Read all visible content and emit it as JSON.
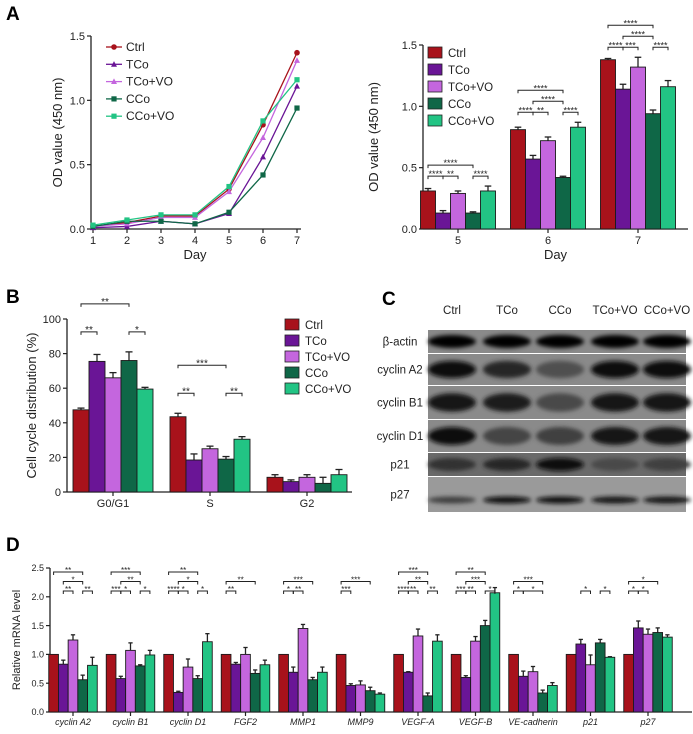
{
  "panel_letters": {
    "a": "A",
    "b": "B",
    "c": "C",
    "d": "D"
  },
  "colors": {
    "Ctrl": "#a8121b",
    "TCo": "#6a1596",
    "TCo+VO": "#c466de",
    "CCo": "#0f6747",
    "CCo+VO": "#22c484"
  },
  "chart_data": [
    {
      "id": "A-line",
      "type": "line",
      "xlabel": "Day",
      "ylabel": "OD value (450 nm)",
      "x": [
        1,
        2,
        3,
        4,
        5,
        6,
        7
      ],
      "xticks": [
        "1",
        "2",
        "3",
        "4",
        "5",
        "6",
        "7"
      ],
      "ylim": [
        0,
        1.5
      ],
      "yticks": [
        "0.0",
        "0.5",
        "1.0",
        "1.5"
      ],
      "legend": "top-left",
      "series": [
        {
          "name": "Ctrl",
          "marker": "circle",
          "values": [
            0.02,
            0.05,
            0.1,
            0.1,
            0.31,
            0.81,
            1.37
          ]
        },
        {
          "name": "TCo",
          "marker": "triangle",
          "values": [
            0.01,
            0.02,
            0.06,
            0.04,
            0.12,
            0.56,
            1.11
          ]
        },
        {
          "name": "TCo+VO",
          "marker": "triangle",
          "values": [
            0.02,
            0.04,
            0.09,
            0.09,
            0.29,
            0.71,
            1.31
          ]
        },
        {
          "name": "CCo",
          "marker": "square",
          "values": [
            0.02,
            0.06,
            0.06,
            0.04,
            0.13,
            0.42,
            0.94
          ]
        },
        {
          "name": "CCo+VO",
          "marker": "square",
          "values": [
            0.03,
            0.07,
            0.11,
            0.11,
            0.33,
            0.84,
            1.16
          ]
        }
      ]
    },
    {
      "id": "A-bar",
      "type": "bar",
      "xlabel": "Day",
      "ylabel": "OD value (450 nm)",
      "categories": [
        "5",
        "6",
        "7"
      ],
      "ylim": [
        0,
        1.5
      ],
      "yticks": [
        "0.0",
        "0.5",
        "1.0",
        "1.5"
      ],
      "legend": "top-left",
      "series": [
        {
          "name": "Ctrl",
          "values": [
            0.31,
            0.81,
            1.38
          ],
          "err": [
            0.02,
            0.02,
            0.01
          ]
        },
        {
          "name": "TCo",
          "values": [
            0.13,
            0.57,
            1.14
          ],
          "err": [
            0.02,
            0.03,
            0.04
          ]
        },
        {
          "name": "TCo+VO",
          "values": [
            0.29,
            0.72,
            1.32
          ],
          "err": [
            0.02,
            0.03,
            0.08
          ]
        },
        {
          "name": "CCo",
          "values": [
            0.13,
            0.42,
            0.94
          ],
          "err": [
            0.01,
            0.01,
            0.03
          ]
        },
        {
          "name": "CCo+VO",
          "values": [
            0.31,
            0.83,
            1.16
          ],
          "err": [
            0.04,
            0.04,
            0.05
          ]
        }
      ],
      "annotations": [
        {
          "group": 0,
          "from": 0,
          "to": 3,
          "text": "****"
        },
        {
          "group": 0,
          "from": 0,
          "to": 1,
          "text": "****"
        },
        {
          "group": 0,
          "from": 1,
          "to": 2,
          "text": "**"
        },
        {
          "group": 0,
          "from": 3,
          "to": 4,
          "text": "****"
        },
        {
          "group": 1,
          "from": 0,
          "to": 3,
          "text": "****"
        },
        {
          "group": 1,
          "from": 0,
          "to": 1,
          "text": "****"
        },
        {
          "group": 1,
          "from": 1,
          "to": 3,
          "text": "****"
        },
        {
          "group": 1,
          "from": 1,
          "to": 2,
          "text": "**"
        },
        {
          "group": 1,
          "from": 3,
          "to": 4,
          "text": "****"
        },
        {
          "group": 2,
          "from": 0,
          "to": 3,
          "text": "****"
        },
        {
          "group": 2,
          "from": 0,
          "to": 1,
          "text": "****"
        },
        {
          "group": 2,
          "from": 1,
          "to": 3,
          "text": "****"
        },
        {
          "group": 2,
          "from": 1,
          "to": 2,
          "text": "***"
        },
        {
          "group": 2,
          "from": 3,
          "to": 4,
          "text": "****"
        }
      ]
    },
    {
      "id": "B-bar",
      "type": "bar",
      "xlabel": "",
      "ylabel": "Cell cycle distribution (%)",
      "categories": [
        "G0/G1",
        "S",
        "G2"
      ],
      "ylim": [
        0,
        100
      ],
      "yticks": [
        "0",
        "20",
        "40",
        "60",
        "80",
        "100"
      ],
      "legend": "top-right",
      "series": [
        {
          "name": "Ctrl",
          "values": [
            47.5,
            43.5,
            8.5
          ],
          "err": [
            1,
            2,
            1.5
          ]
        },
        {
          "name": "TCo",
          "values": [
            75.5,
            18.5,
            6
          ],
          "err": [
            4,
            3.5,
            1
          ]
        },
        {
          "name": "TCo+VO",
          "values": [
            66,
            25,
            8.5
          ],
          "err": [
            3,
            1.5,
            1.5
          ]
        },
        {
          "name": "CCo",
          "values": [
            76,
            19,
            5
          ],
          "err": [
            5,
            1.5,
            3.5
          ]
        },
        {
          "name": "CCo+VO",
          "values": [
            59.5,
            30.5,
            10
          ],
          "err": [
            1,
            1.5,
            3
          ]
        }
      ],
      "annotations": [
        {
          "group": 0,
          "from": 0,
          "to": 3,
          "text": "**"
        },
        {
          "group": 0,
          "from": 0,
          "to": 1,
          "text": "**"
        },
        {
          "group": 0,
          "from": 3,
          "to": 4,
          "text": "*"
        },
        {
          "group": 1,
          "from": 0,
          "to": 3,
          "text": "***"
        },
        {
          "group": 1,
          "from": 0,
          "to": 1,
          "text": "**"
        },
        {
          "group": 1,
          "from": 3,
          "to": 4,
          "text": "**"
        }
      ]
    },
    {
      "id": "D-bar",
      "type": "bar",
      "xlabel": "",
      "ylabel": "Relative mRNA level",
      "categories": [
        "cyclin A2",
        "cyclin B1",
        "cyclin D1",
        "FGF2",
        "MMP1",
        "MMP9",
        "VEGF-A",
        "VEGF-B",
        "VE-cadherin",
        "p21",
        "p27"
      ],
      "ylim": [
        0,
        2.5
      ],
      "yticks": [
        "0.0",
        "0.5",
        "1.0",
        "1.5",
        "2.0",
        "2.5"
      ],
      "legend": "none",
      "series": [
        {
          "name": "Ctrl",
          "values": [
            1,
            1,
            1,
            1,
            1,
            1,
            1,
            1,
            1,
            1,
            1
          ],
          "err": [
            0,
            0,
            0,
            0,
            0,
            0,
            0,
            0,
            0,
            0,
            0
          ]
        },
        {
          "name": "TCo",
          "values": [
            0.83,
            0.58,
            0.34,
            0.83,
            0.69,
            0.46,
            0.69,
            0.6,
            0.62,
            1.18,
            1.46
          ],
          "err": [
            0.07,
            0.04,
            0.02,
            0.03,
            0.09,
            0.03,
            0.01,
            0.03,
            0.09,
            0.08,
            0.12
          ]
        },
        {
          "name": "TCo+VO",
          "values": [
            1.25,
            1.07,
            0.78,
            1.0,
            1.45,
            0.47,
            1.32,
            1.23,
            0.7,
            0.82,
            1.35
          ],
          "err": [
            0.09,
            0.13,
            0.14,
            0.12,
            0.07,
            0.07,
            0.12,
            0.08,
            0.09,
            0.17,
            0.09
          ]
        },
        {
          "name": "CCo",
          "values": [
            0.56,
            0.8,
            0.58,
            0.67,
            0.56,
            0.37,
            0.28,
            1.5,
            0.33,
            1.2,
            1.38
          ],
          "err": [
            0.08,
            0.02,
            0.05,
            0.06,
            0.04,
            0.06,
            0.05,
            0.09,
            0.05,
            0.06,
            0.08
          ]
        },
        {
          "name": "CCo+VO",
          "values": [
            0.81,
            0.99,
            1.22,
            0.82,
            0.69,
            0.31,
            1.23,
            2.07,
            0.46,
            0.95,
            1.3
          ],
          "err": [
            0.14,
            0.08,
            0.14,
            0.08,
            0.09,
            0.02,
            0.11,
            0.09,
            0.05,
            0.01,
            0.04
          ]
        }
      ],
      "annotations": [
        {
          "group": 0,
          "from": 0,
          "to": 3,
          "text": "**"
        },
        {
          "group": 0,
          "from": 3,
          "to": 4,
          "text": "**"
        },
        {
          "group": 0,
          "from": 1,
          "to": 3,
          "text": "*"
        },
        {
          "group": 0,
          "from": 1,
          "to": 2,
          "text": "**"
        },
        {
          "group": 1,
          "from": 0,
          "to": 3,
          "text": "***"
        },
        {
          "group": 1,
          "from": 0,
          "to": 1,
          "text": "***"
        },
        {
          "group": 1,
          "from": 1,
          "to": 3,
          "text": "**"
        },
        {
          "group": 1,
          "from": 1,
          "to": 2,
          "text": "*"
        },
        {
          "group": 1,
          "from": 3,
          "to": 4,
          "text": "*"
        },
        {
          "group": 2,
          "from": 0,
          "to": 3,
          "text": "**"
        },
        {
          "group": 2,
          "from": 0,
          "to": 1,
          "text": "****"
        },
        {
          "group": 2,
          "from": 1,
          "to": 3,
          "text": "*"
        },
        {
          "group": 2,
          "from": 1,
          "to": 2,
          "text": "*"
        },
        {
          "group": 2,
          "from": 3,
          "to": 4,
          "text": "*"
        },
        {
          "group": 3,
          "from": 0,
          "to": 3,
          "text": "**"
        },
        {
          "group": 3,
          "from": 0,
          "to": 1,
          "text": "**"
        },
        {
          "group": 4,
          "from": 0,
          "to": 3,
          "text": "***"
        },
        {
          "group": 4,
          "from": 0,
          "to": 1,
          "text": "*"
        },
        {
          "group": 4,
          "from": 1,
          "to": 2,
          "text": "**"
        },
        {
          "group": 5,
          "from": 0,
          "to": 3,
          "text": "***"
        },
        {
          "group": 5,
          "from": 0,
          "to": 1,
          "text": "***"
        },
        {
          "group": 6,
          "from": 0,
          "to": 3,
          "text": "***"
        },
        {
          "group": 6,
          "from": 0,
          "to": 1,
          "text": "****"
        },
        {
          "group": 6,
          "from": 1,
          "to": 3,
          "text": "**"
        },
        {
          "group": 6,
          "from": 1,
          "to": 2,
          "text": "**"
        },
        {
          "group": 6,
          "from": 3,
          "to": 4,
          "text": "**"
        },
        {
          "group": 7,
          "from": 0,
          "to": 3,
          "text": "**"
        },
        {
          "group": 7,
          "from": 0,
          "to": 1,
          "text": "***"
        },
        {
          "group": 7,
          "from": 1,
          "to": 3,
          "text": "***"
        },
        {
          "group": 7,
          "from": 1,
          "to": 2,
          "text": "**"
        },
        {
          "group": 7,
          "from": 3,
          "to": 4,
          "text": "*"
        },
        {
          "group": 8,
          "from": 0,
          "to": 3,
          "text": "***"
        },
        {
          "group": 8,
          "from": 0,
          "to": 1,
          "text": "*"
        },
        {
          "group": 8,
          "from": 1,
          "to": 3,
          "text": "*"
        },
        {
          "group": 9,
          "from": 1,
          "to": 2,
          "text": "*"
        },
        {
          "group": 9,
          "from": 3,
          "to": 4,
          "text": "*"
        },
        {
          "group": 10,
          "from": 0,
          "to": 3,
          "text": "*"
        },
        {
          "group": 10,
          "from": 0,
          "to": 1,
          "text": "*"
        },
        {
          "group": 10,
          "from": 1,
          "to": 2,
          "text": "*"
        }
      ]
    }
  ],
  "blot": {
    "lanes": [
      "Ctrl",
      "TCo",
      "CCo",
      "TCo+VO",
      "CCo+VO"
    ],
    "rows": [
      {
        "label": "β-actin",
        "intensity": [
          1.0,
          1.0,
          1.0,
          1.0,
          1.0
        ]
      },
      {
        "label": "cyclin A2",
        "intensity": [
          0.95,
          0.7,
          0.35,
          0.9,
          0.95
        ]
      },
      {
        "label": "cyclin B1",
        "intensity": [
          0.85,
          0.8,
          0.4,
          0.85,
          0.85
        ]
      },
      {
        "label": "cyclin D1",
        "intensity": [
          0.9,
          0.45,
          0.5,
          0.85,
          0.85
        ]
      },
      {
        "label": "p21",
        "intensity": [
          0.6,
          0.7,
          0.95,
          0.4,
          0.5
        ]
      },
      {
        "label": "p27",
        "intensity": [
          0.5,
          0.95,
          0.9,
          0.85,
          0.85
        ]
      }
    ]
  }
}
